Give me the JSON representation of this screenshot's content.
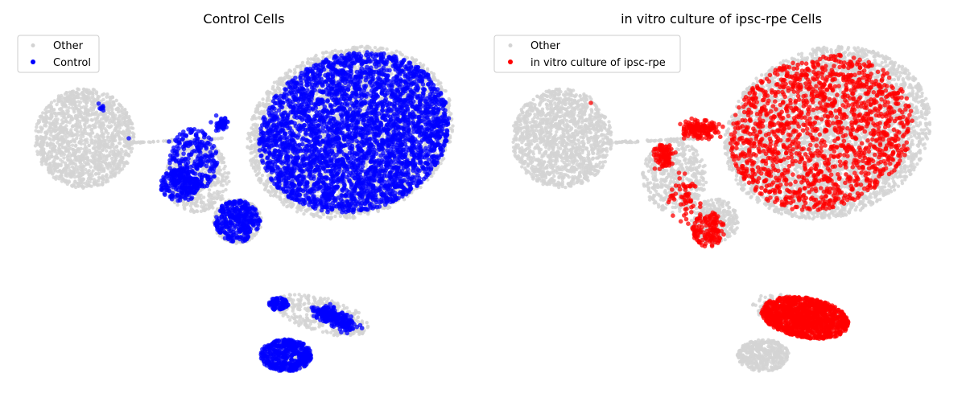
{
  "chart_data": [
    {
      "type": "scatter",
      "title": "Control Cells",
      "xlabel": "",
      "ylabel": "",
      "axes_visible": false,
      "grid": false,
      "legend": {
        "position": "top-left",
        "entries": [
          {
            "label": "Other",
            "color": "#d3d3d3"
          },
          {
            "label": "Control",
            "color": "#0000ff"
          }
        ]
      },
      "series": [
        {
          "name": "Other",
          "color": "#d3d3d3",
          "role": "background",
          "clusters": [
            "left-island",
            "main-blob",
            "left-lobe",
            "bottom-lobe",
            "bottom-strip",
            "bottom-blob",
            "bridge"
          ]
        },
        {
          "name": "Control",
          "color": "#0000ff",
          "role": "highlight",
          "clusters": [
            "left-island-sparse",
            "main-blob-dense",
            "left-lobe-dense",
            "bottom-lobe-dense",
            "bottom-strip-dense",
            "bottom-blob-dense",
            "bridge-sparse"
          ]
        }
      ]
    },
    {
      "type": "scatter",
      "title": "in vitro culture of ipsc-rpe Cells",
      "xlabel": "",
      "ylabel": "",
      "axes_visible": false,
      "grid": false,
      "legend": {
        "position": "top-left",
        "entries": [
          {
            "label": "Other",
            "color": "#d3d3d3"
          },
          {
            "label": "in vitro culture of ipsc-rpe",
            "color": "#ff0000"
          }
        ]
      },
      "series": [
        {
          "name": "Other",
          "color": "#d3d3d3",
          "role": "background",
          "clusters": [
            "left-island",
            "main-blob",
            "left-lobe",
            "bottom-lobe",
            "bottom-strip",
            "bottom-blob",
            "bridge"
          ]
        },
        {
          "name": "in vitro culture of ipsc-rpe",
          "color": "#ff0000",
          "role": "highlight",
          "clusters": [
            "left-island-single",
            "main-blob-medium",
            "left-lobe-sparse",
            "bottom-lobe-dense",
            "bottom-strip-dense"
          ]
        }
      ]
    }
  ]
}
